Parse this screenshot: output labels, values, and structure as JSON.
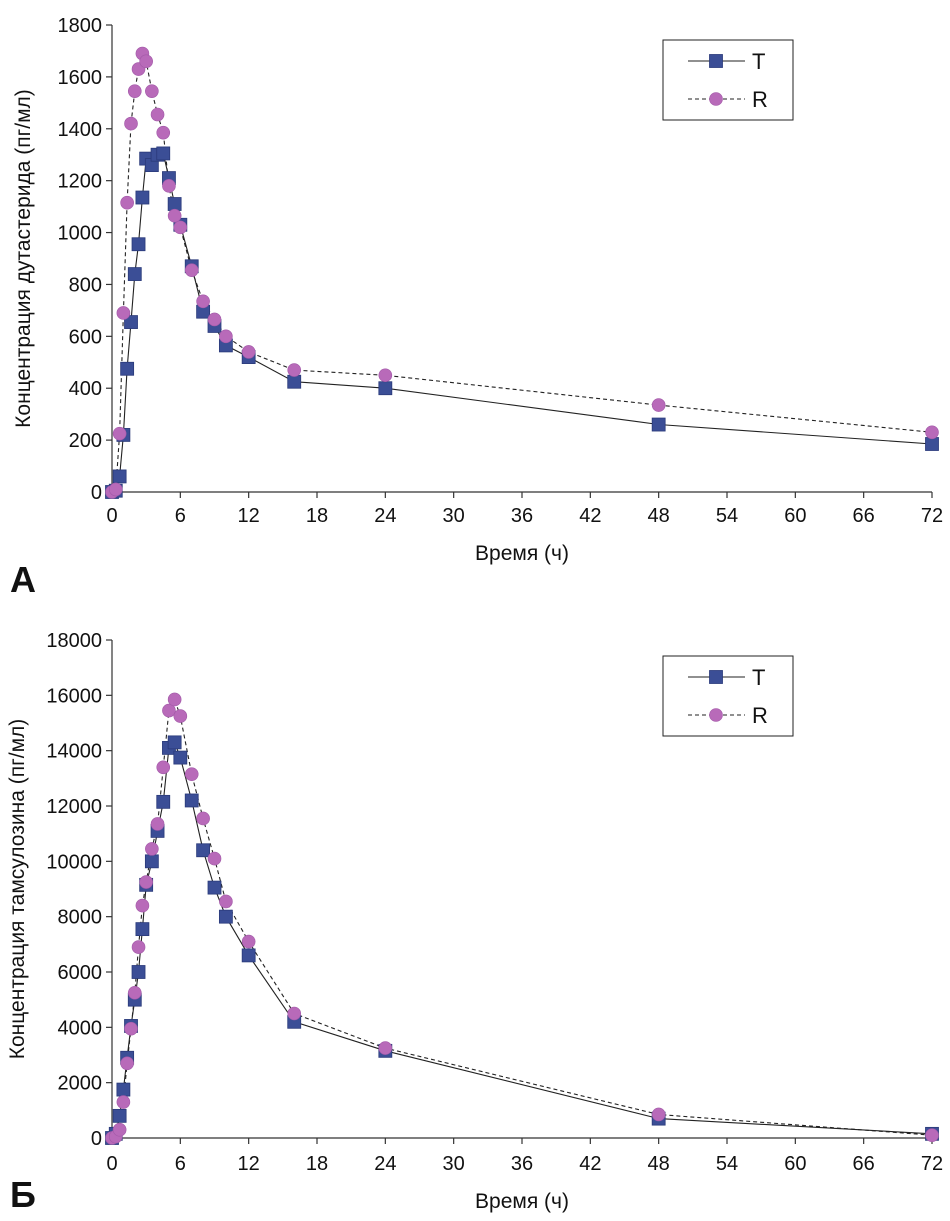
{
  "chart_data": [
    {
      "type": "line",
      "panel_label": "A",
      "xlabel": "Время (ч)",
      "ylabel": "Концентрация дутастерида (пг/мл)",
      "xlim": [
        0,
        72
      ],
      "ylim": [
        0,
        1800
      ],
      "xticks": [
        0,
        6,
        12,
        18,
        24,
        30,
        36,
        42,
        48,
        54,
        60,
        66,
        72
      ],
      "yticks": [
        0,
        200,
        400,
        600,
        800,
        1000,
        1200,
        1400,
        1600,
        1800
      ],
      "ytick_labels": [
        "0",
        "200",
        "400",
        "600",
        "800",
        "1000",
        "1200",
        "1400",
        "1600",
        "1800"
      ],
      "legend_position": "top-right",
      "series": [
        {
          "name": "T",
          "marker": "square",
          "line": "solid",
          "color": "#3B4E96",
          "x": [
            0,
            0.33,
            0.67,
            1,
            1.33,
            1.67,
            2,
            2.33,
            2.67,
            3,
            3.5,
            4,
            4.5,
            5,
            5.5,
            6,
            7,
            8,
            9,
            10,
            12,
            16,
            24,
            48,
            72
          ],
          "y": [
            0,
            5,
            60,
            220,
            475,
            655,
            840,
            955,
            1135,
            1285,
            1260,
            1300,
            1305,
            1210,
            1110,
            1030,
            870,
            695,
            640,
            565,
            520,
            425,
            400,
            260,
            185
          ]
        },
        {
          "name": "R",
          "marker": "circle",
          "line": "dashed",
          "color": "#B86AB9",
          "x": [
            0,
            0.33,
            0.67,
            1,
            1.33,
            1.67,
            2,
            2.33,
            2.67,
            3,
            3.5,
            4,
            4.5,
            5,
            5.5,
            6,
            7,
            8,
            9,
            10,
            12,
            16,
            24,
            48,
            72
          ],
          "y": [
            0,
            10,
            225,
            690,
            1115,
            1420,
            1545,
            1630,
            1690,
            1660,
            1545,
            1455,
            1385,
            1180,
            1065,
            1020,
            855,
            735,
            665,
            600,
            540,
            470,
            450,
            335,
            230
          ]
        }
      ]
    },
    {
      "type": "line",
      "panel_label": "Б",
      "xlabel": "Время (ч)",
      "ylabel": "Концентрация тамсулозина (пг/мл)",
      "xlim": [
        0,
        72
      ],
      "ylim": [
        0,
        18000
      ],
      "xticks": [
        0,
        6,
        12,
        18,
        24,
        30,
        36,
        42,
        48,
        54,
        60,
        66,
        72
      ],
      "yticks": [
        0,
        2000,
        4000,
        6000,
        8000,
        10000,
        12000,
        14000,
        16000,
        18000
      ],
      "ytick_labels": [
        "0",
        "2000",
        "4000",
        "6000",
        "8000",
        "10000",
        "12000",
        "14000",
        "16000",
        "18000"
      ],
      "legend_position": "top-right",
      "series": [
        {
          "name": "T",
          "marker": "square",
          "line": "solid",
          "color": "#3B4E96",
          "x": [
            0,
            0.33,
            0.67,
            1,
            1.33,
            1.67,
            2,
            2.33,
            2.67,
            3,
            3.5,
            4,
            4.5,
            5,
            5.5,
            6,
            7,
            8,
            9,
            10,
            12,
            16,
            24,
            48,
            72
          ],
          "y": [
            0,
            150,
            800,
            1750,
            2900,
            4050,
            5000,
            6000,
            7550,
            9150,
            10000,
            11100,
            12150,
            14100,
            14300,
            13750,
            12200,
            10400,
            9050,
            8000,
            6600,
            4200,
            3150,
            700,
            150
          ]
        },
        {
          "name": "R",
          "marker": "circle",
          "line": "dashed",
          "color": "#B86AB9",
          "x": [
            0,
            0.33,
            0.67,
            1,
            1.33,
            1.67,
            2,
            2.33,
            2.67,
            3,
            3.5,
            4,
            4.5,
            5,
            5.5,
            6,
            7,
            8,
            9,
            10,
            12,
            16,
            24,
            48,
            72
          ],
          "y": [
            0,
            50,
            300,
            1300,
            2700,
            3950,
            5250,
            6900,
            8400,
            9250,
            10450,
            11350,
            13400,
            15450,
            15850,
            15250,
            13150,
            11550,
            10100,
            8550,
            7100,
            4500,
            3250,
            850,
            100
          ]
        }
      ]
    }
  ]
}
